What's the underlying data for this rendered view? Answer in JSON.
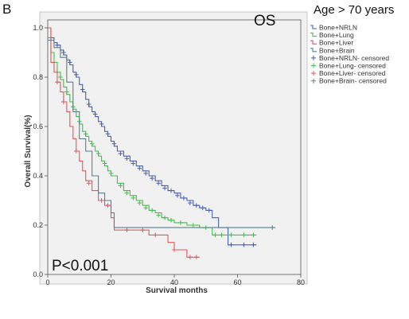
{
  "panel_letter": "B",
  "chart_data": {
    "type": "line",
    "subtype": "kaplan-meier",
    "annotation_top": "OS",
    "title_right": "Age > 70 years",
    "xlabel": "Survival months",
    "ylabel": "Overall Survival(%)",
    "xlim": [
      0,
      80
    ],
    "ylim": [
      0,
      1.0
    ],
    "x_ticks": [
      "0",
      "20",
      "40",
      "60",
      "80"
    ],
    "y_ticks": [
      "0.0",
      "0.2",
      "0.4",
      "0.6",
      "0.8",
      "1.0"
    ],
    "p_value_text": "P<0.001",
    "grid": false,
    "legend_position": "right",
    "legend": [
      {
        "label": "Bone+NRLN",
        "color": "#4a5fb0",
        "kind": "line"
      },
      {
        "label": "Bone+Lung",
        "color": "#3ec14a",
        "kind": "line"
      },
      {
        "label": "Bone+Liver",
        "color": "#e8545c",
        "kind": "line"
      },
      {
        "label": "Bone+Brain",
        "color": "#5a7f8c",
        "kind": "line"
      },
      {
        "label": "Bone+NRLN- censored",
        "color": "#4a5fb0",
        "kind": "censor"
      },
      {
        "label": "Bone+Lung- censored",
        "color": "#3ec14a",
        "kind": "censor"
      },
      {
        "label": "Bone+Liver- censored",
        "color": "#e8545c",
        "kind": "censor"
      },
      {
        "label": "Bone+Brain- censored",
        "color": "#5a7f8c",
        "kind": "censor"
      }
    ],
    "series": [
      {
        "name": "Bone+NRLN",
        "color": "#4a5fb0",
        "steps": [
          [
            0,
            1.0
          ],
          [
            1,
            0.96
          ],
          [
            2,
            0.94
          ],
          [
            3,
            0.93
          ],
          [
            4,
            0.91
          ],
          [
            5,
            0.89
          ],
          [
            6,
            0.87
          ],
          [
            7,
            0.85
          ],
          [
            8,
            0.82
          ],
          [
            9,
            0.8
          ],
          [
            10,
            0.77
          ],
          [
            11,
            0.74
          ],
          [
            12,
            0.71
          ],
          [
            13,
            0.68
          ],
          [
            14,
            0.66
          ],
          [
            15,
            0.64
          ],
          [
            16,
            0.62
          ],
          [
            17,
            0.6
          ],
          [
            18,
            0.58
          ],
          [
            19,
            0.56
          ],
          [
            20,
            0.54
          ],
          [
            21,
            0.52
          ],
          [
            22,
            0.5
          ],
          [
            24,
            0.48
          ],
          [
            26,
            0.46
          ],
          [
            28,
            0.44
          ],
          [
            30,
            0.42
          ],
          [
            32,
            0.4
          ],
          [
            34,
            0.38
          ],
          [
            36,
            0.36
          ],
          [
            38,
            0.34
          ],
          [
            40,
            0.33
          ],
          [
            42,
            0.31
          ],
          [
            44,
            0.3
          ],
          [
            46,
            0.28
          ],
          [
            48,
            0.27
          ],
          [
            50,
            0.26
          ],
          [
            52,
            0.23
          ],
          [
            54,
            0.19
          ],
          [
            57,
            0.12
          ],
          [
            60,
            0.12
          ],
          [
            66,
            0.12
          ]
        ],
        "censored": [
          [
            3,
            0.93
          ],
          [
            5,
            0.9
          ],
          [
            7,
            0.86
          ],
          [
            9,
            0.81
          ],
          [
            11,
            0.75
          ],
          [
            13,
            0.69
          ],
          [
            15,
            0.65
          ],
          [
            17,
            0.61
          ],
          [
            19,
            0.57
          ],
          [
            21,
            0.53
          ],
          [
            23,
            0.49
          ],
          [
            25,
            0.47
          ],
          [
            27,
            0.45
          ],
          [
            29,
            0.43
          ],
          [
            31,
            0.41
          ],
          [
            33,
            0.39
          ],
          [
            35,
            0.37
          ],
          [
            37,
            0.35
          ],
          [
            39,
            0.34
          ],
          [
            41,
            0.32
          ],
          [
            43,
            0.31
          ],
          [
            45,
            0.29
          ],
          [
            47,
            0.28
          ],
          [
            49,
            0.27
          ],
          [
            51,
            0.26
          ],
          [
            58,
            0.12
          ],
          [
            62,
            0.12
          ],
          [
            65,
            0.12
          ]
        ]
      },
      {
        "name": "Bone+Lung",
        "color": "#3ec14a",
        "steps": [
          [
            0,
            0.96
          ],
          [
            1,
            0.9
          ],
          [
            2,
            0.86
          ],
          [
            3,
            0.82
          ],
          [
            4,
            0.79
          ],
          [
            5,
            0.76
          ],
          [
            6,
            0.73
          ],
          [
            7,
            0.7
          ],
          [
            8,
            0.67
          ],
          [
            9,
            0.64
          ],
          [
            10,
            0.61
          ],
          [
            11,
            0.58
          ],
          [
            12,
            0.56
          ],
          [
            13,
            0.54
          ],
          [
            14,
            0.52
          ],
          [
            15,
            0.5
          ],
          [
            16,
            0.48
          ],
          [
            17,
            0.46
          ],
          [
            18,
            0.44
          ],
          [
            19,
            0.42
          ],
          [
            20,
            0.4
          ],
          [
            22,
            0.37
          ],
          [
            24,
            0.34
          ],
          [
            26,
            0.32
          ],
          [
            28,
            0.3
          ],
          [
            30,
            0.28
          ],
          [
            32,
            0.26
          ],
          [
            34,
            0.25
          ],
          [
            36,
            0.23
          ],
          [
            38,
            0.22
          ],
          [
            40,
            0.21
          ],
          [
            44,
            0.2
          ],
          [
            48,
            0.19
          ],
          [
            52,
            0.16
          ],
          [
            56,
            0.16
          ],
          [
            60,
            0.16
          ],
          [
            66,
            0.16
          ]
        ],
        "censored": [
          [
            4,
            0.8
          ],
          [
            6,
            0.74
          ],
          [
            8,
            0.68
          ],
          [
            10,
            0.62
          ],
          [
            12,
            0.57
          ],
          [
            14,
            0.53
          ],
          [
            16,
            0.49
          ],
          [
            18,
            0.45
          ],
          [
            20,
            0.41
          ],
          [
            23,
            0.36
          ],
          [
            25,
            0.33
          ],
          [
            27,
            0.31
          ],
          [
            29,
            0.29
          ],
          [
            31,
            0.27
          ],
          [
            33,
            0.26
          ],
          [
            35,
            0.24
          ],
          [
            37,
            0.23
          ],
          [
            39,
            0.22
          ],
          [
            42,
            0.21
          ],
          [
            46,
            0.2
          ],
          [
            50,
            0.19
          ],
          [
            53,
            0.16
          ],
          [
            55,
            0.16
          ],
          [
            58,
            0.16
          ],
          [
            62,
            0.16
          ],
          [
            65,
            0.16
          ]
        ]
      },
      {
        "name": "Bone+Liver",
        "color": "#e8545c",
        "steps": [
          [
            0,
            1.0
          ],
          [
            1,
            0.86
          ],
          [
            2,
            0.82
          ],
          [
            3,
            0.78
          ],
          [
            4,
            0.74
          ],
          [
            5,
            0.7
          ],
          [
            6,
            0.66
          ],
          [
            7,
            0.6
          ],
          [
            8,
            0.55
          ],
          [
            9,
            0.5
          ],
          [
            10,
            0.46
          ],
          [
            11,
            0.42
          ],
          [
            12,
            0.38
          ],
          [
            14,
            0.34
          ],
          [
            16,
            0.3
          ],
          [
            18,
            0.28
          ],
          [
            20,
            0.23
          ],
          [
            21,
            0.18
          ],
          [
            24,
            0.18
          ],
          [
            28,
            0.18
          ],
          [
            32,
            0.16
          ],
          [
            36,
            0.16
          ],
          [
            38,
            0.13
          ],
          [
            40,
            0.1
          ],
          [
            42,
            0.1
          ],
          [
            44,
            0.07
          ],
          [
            48,
            0.07
          ]
        ],
        "censored": [
          [
            3,
            0.78
          ],
          [
            5,
            0.7
          ],
          [
            9,
            0.5
          ],
          [
            13,
            0.37
          ],
          [
            17,
            0.3
          ],
          [
            19,
            0.28
          ],
          [
            25,
            0.18
          ],
          [
            30,
            0.18
          ],
          [
            34,
            0.16
          ],
          [
            40,
            0.1
          ],
          [
            45,
            0.07
          ],
          [
            47,
            0.07
          ]
        ]
      },
      {
        "name": "Bone+Brain",
        "color": "#5a7f8c",
        "steps": [
          [
            0,
            0.95
          ],
          [
            2,
            0.92
          ],
          [
            4,
            0.88
          ],
          [
            6,
            0.78
          ],
          [
            8,
            0.66
          ],
          [
            10,
            0.55
          ],
          [
            12,
            0.5
          ],
          [
            14,
            0.4
          ],
          [
            16,
            0.33
          ],
          [
            18,
            0.3
          ],
          [
            20,
            0.25
          ],
          [
            21,
            0.19
          ],
          [
            30,
            0.19
          ],
          [
            40,
            0.19
          ],
          [
            50,
            0.19
          ],
          [
            60,
            0.19
          ],
          [
            72,
            0.19
          ]
        ],
        "censored": [
          [
            71,
            0.19
          ]
        ]
      }
    ]
  }
}
